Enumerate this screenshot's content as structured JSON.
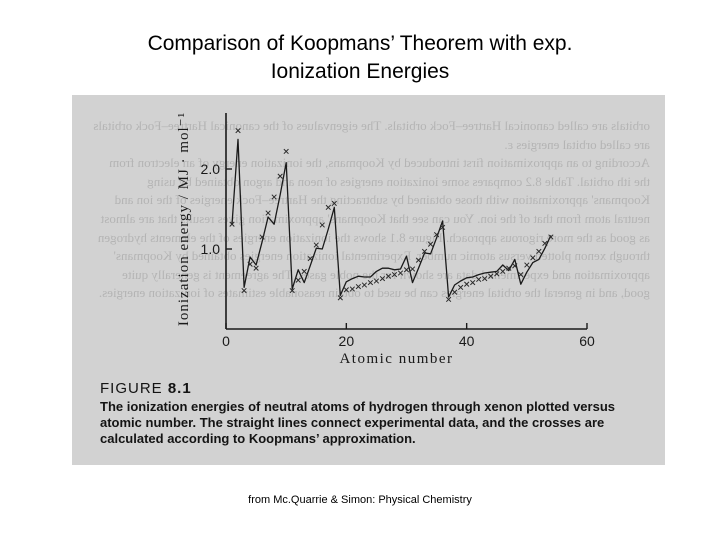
{
  "slide": {
    "title_line1": "Comparison of Koopmans’ Theorem with exp.",
    "title_line2": "Ionization Energies",
    "credit": "from Mc.Quarrie & Simon: Physical Chemistry"
  },
  "figure": {
    "label_prefix": "FIGURE ",
    "label_number": "8.1",
    "caption": "The ionization energies of neutral atoms of hydrogen through xenon plotted versus atomic number. The straight lines connect experimental data, and the crosses are calculated according to Koopmans’ approximation.",
    "bleed_through_text": "orbitals are called canonical Hartree–Fock orbitals. The eigenvalues of the canonical Hartree–Fock orbitals are called orbital energies ε.\nAccording to an approximation first introduced by Koopmans, the ionization energy of an electron from the ith orbital. Table 8.2 compares some ionization energies of neon and argon obtained by using Koopmans' approximation with those obtained by subtracting the Hartree–Fock energies of the ion and neutral atom from that of the ion. You can see that Koopmans' approximation gives results that are almost as good as the more rigorous approach. Figure 8.1 shows the ionization energies of the elements hydrogen through xenon plotted versus atomic number. Experimental ionization energies obtained by Koopmans' approximation and experimental data are shown for the noble gases. The agreement is generally quite good, and in general the orbital energies can be used to obtain reasonable estimates of ionization energies."
  },
  "chart_data": {
    "type": "line",
    "title": "",
    "xlabel": "Atomic number",
    "ylabel": "Ionization energy / MJ · mol⁻¹",
    "xlim": [
      0,
      60
    ],
    "ylim": [
      0,
      2.6
    ],
    "xticks": [
      0,
      20,
      40,
      60
    ],
    "yticks": [
      1.0,
      2.0
    ],
    "grid": false,
    "legend": "none",
    "series": [
      {
        "style": "line",
        "x": [
          1,
          2,
          3,
          4,
          5,
          6,
          7,
          8,
          9,
          10,
          11,
          12,
          13,
          14,
          15,
          16,
          17,
          18,
          19,
          20,
          21,
          22,
          23,
          24,
          25,
          26,
          27,
          28,
          29,
          30,
          31,
          32,
          33,
          34,
          35,
          36,
          37,
          38,
          39,
          40,
          41,
          42,
          43,
          44,
          45,
          46,
          47,
          48,
          49,
          50,
          51,
          52,
          53,
          54
        ],
        "y": [
          1.31,
          2.37,
          0.52,
          0.9,
          0.8,
          1.09,
          1.4,
          1.31,
          1.68,
          2.08,
          0.5,
          0.74,
          0.58,
          0.79,
          1.01,
          1.0,
          1.25,
          1.52,
          0.42,
          0.59,
          0.63,
          0.66,
          0.65,
          0.65,
          0.72,
          0.76,
          0.76,
          0.74,
          0.75,
          0.91,
          0.58,
          0.76,
          0.95,
          0.94,
          1.14,
          1.35,
          0.4,
          0.55,
          0.6,
          0.64,
          0.65,
          0.68,
          0.7,
          0.71,
          0.72,
          0.8,
          0.73,
          0.87,
          0.56,
          0.71,
          0.83,
          0.87,
          1.01,
          1.17
        ]
      },
      {
        "style": "cross",
        "x": [
          1,
          2,
          3,
          4,
          5,
          6,
          7,
          8,
          9,
          10,
          11,
          12,
          13,
          14,
          15,
          16,
          17,
          18,
          19,
          20,
          21,
          22,
          23,
          24,
          25,
          26,
          27,
          28,
          29,
          30,
          31,
          32,
          33,
          34,
          35,
          36,
          37,
          38,
          39,
          40,
          41,
          42,
          43,
          44,
          45,
          46,
          47,
          48,
          49,
          50,
          51,
          52,
          53,
          54
        ],
        "y": [
          1.31,
          2.48,
          0.48,
          0.81,
          0.76,
          1.15,
          1.45,
          1.65,
          1.91,
          2.22,
          0.48,
          0.61,
          0.72,
          0.88,
          1.05,
          1.3,
          1.52,
          1.57,
          0.39,
          0.49,
          0.5,
          0.53,
          0.55,
          0.58,
          0.6,
          0.63,
          0.66,
          0.68,
          0.7,
          0.74,
          0.75,
          0.86,
          0.97,
          1.06,
          1.18,
          1.27,
          0.37,
          0.46,
          0.52,
          0.56,
          0.58,
          0.62,
          0.63,
          0.66,
          0.69,
          0.72,
          0.76,
          0.79,
          0.68,
          0.8,
          0.89,
          0.97,
          1.07,
          1.15
        ]
      }
    ]
  }
}
